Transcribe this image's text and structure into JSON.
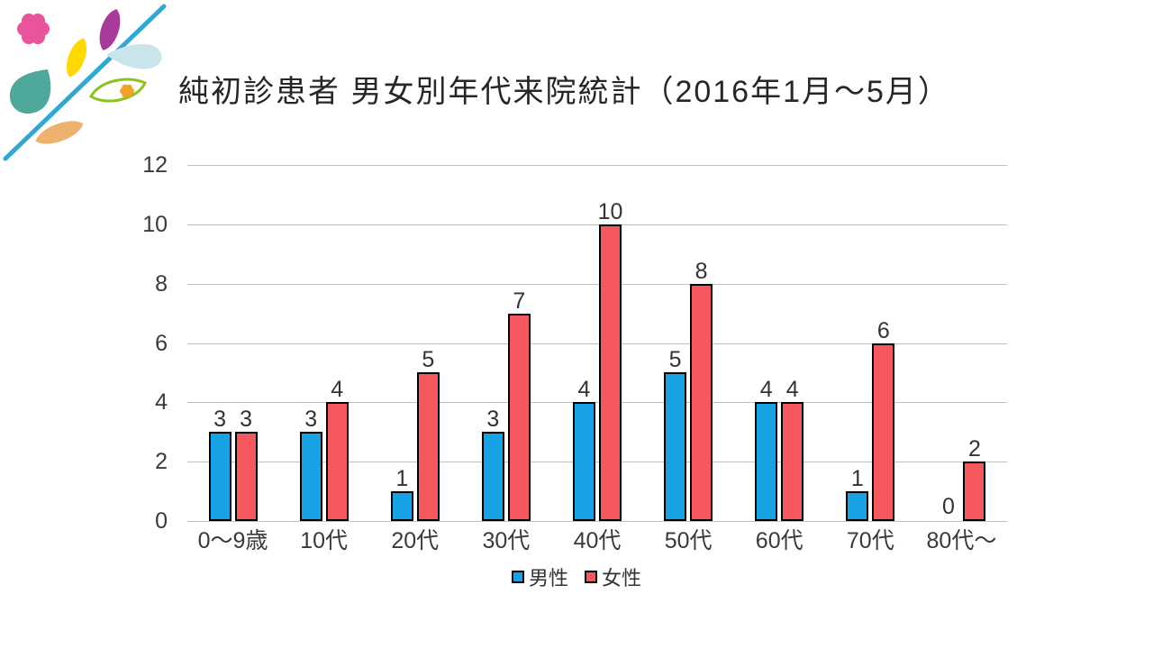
{
  "slide": {
    "title": "純初診患者 男女別年代来院統計（2016年1月～5月）"
  },
  "chart_data": {
    "type": "bar",
    "title": "純初診患者 男女別年代来院統計（2016年1月～5月）",
    "categories": [
      "0～9歳",
      "10代",
      "20代",
      "30代",
      "40代",
      "50代",
      "60代",
      "70代",
      "80代～"
    ],
    "series": [
      {
        "name": "男性",
        "color": "#17A2E5",
        "values": [
          3,
          3,
          1,
          3,
          4,
          5,
          4,
          1,
          0
        ]
      },
      {
        "name": "女性",
        "color": "#F4575C",
        "values": [
          3,
          4,
          5,
          7,
          10,
          8,
          4,
          6,
          2
        ]
      }
    ],
    "xlabel": "",
    "ylabel": "",
    "ylim": [
      0,
      12
    ],
    "ytick_step": 2,
    "yticks": [
      0,
      2,
      4,
      6,
      8,
      10,
      12
    ],
    "grid": "horizontal",
    "legend_position": "bottom",
    "bar_border_color": "#000000",
    "gridline_color": "#bfbfbf",
    "axis_text_color": "#3a3a3a",
    "label_color": "#333333"
  },
  "logo": {
    "colors": {
      "stem_line": "#2FA8D5",
      "pink_flower": "#E8559A",
      "magenta_leaf": "#A83A9B",
      "yellow_leaf": "#FFD800",
      "pale_blue_droplet": "#C9E4EA",
      "teal_droplet": "#4FA99B",
      "green_leaf_outline": "#8CC21E",
      "orange_flower": "#EFA22B",
      "tan_leaf": "#EDB26E"
    }
  }
}
